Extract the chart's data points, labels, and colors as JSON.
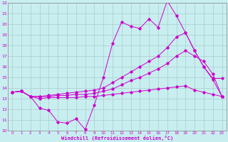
{
  "background_color": "#c8eef0",
  "grid_color": "#aacccc",
  "line_color": "#cc00cc",
  "marker_color": "#cc00cc",
  "xlabel": "Windchill (Refroidissement éolien,°C)",
  "xlabel_color": "#cc00cc",
  "tick_color": "#cc00cc",
  "xlim": [
    -0.5,
    23.5
  ],
  "ylim": [
    10,
    22
  ],
  "xticks": [
    0,
    1,
    2,
    3,
    4,
    5,
    6,
    7,
    8,
    9,
    10,
    11,
    12,
    13,
    14,
    15,
    16,
    17,
    18,
    19,
    20,
    21,
    22,
    23
  ],
  "yticks": [
    10,
    11,
    12,
    13,
    14,
    15,
    16,
    17,
    18,
    19,
    20,
    21,
    22
  ],
  "line1_x": [
    0,
    1,
    2,
    3,
    4,
    5,
    6,
    7,
    8,
    9,
    10,
    11,
    12,
    13,
    14,
    15,
    16,
    17,
    18,
    19,
    20,
    21,
    22,
    23
  ],
  "line1_y": [
    13.6,
    13.7,
    13.2,
    12.1,
    11.9,
    10.8,
    10.7,
    11.1,
    10.1,
    12.4,
    15.0,
    18.2,
    20.2,
    19.8,
    19.6,
    20.5,
    19.7,
    22.2,
    20.8,
    19.2,
    17.5,
    16.0,
    14.9,
    14.9
  ],
  "line2_x": [
    0,
    1,
    2,
    3,
    4,
    5,
    6,
    7,
    8,
    9,
    10,
    11,
    12,
    13,
    14,
    15,
    16,
    17,
    18,
    19,
    20,
    21,
    22,
    23
  ],
  "line2_y": [
    13.6,
    13.7,
    13.2,
    13.2,
    13.3,
    13.4,
    13.5,
    13.6,
    13.7,
    13.8,
    14.0,
    14.5,
    15.0,
    15.5,
    16.0,
    16.5,
    17.0,
    17.8,
    18.8,
    19.2,
    17.5,
    16.0,
    14.8,
    13.2
  ],
  "line3_x": [
    0,
    1,
    2,
    3,
    4,
    5,
    6,
    7,
    8,
    9,
    10,
    11,
    12,
    13,
    14,
    15,
    16,
    17,
    18,
    19,
    20,
    21,
    22,
    23
  ],
  "line3_y": [
    13.6,
    13.7,
    13.2,
    13.2,
    13.2,
    13.3,
    13.3,
    13.4,
    13.4,
    13.5,
    13.7,
    13.9,
    14.3,
    14.7,
    15.0,
    15.4,
    15.8,
    16.3,
    17.0,
    17.5,
    17.0,
    16.5,
    15.3,
    13.2
  ],
  "line4_x": [
    0,
    1,
    2,
    3,
    4,
    5,
    6,
    7,
    8,
    9,
    10,
    11,
    12,
    13,
    14,
    15,
    16,
    17,
    18,
    19,
    20,
    21,
    22,
    23
  ],
  "line4_y": [
    13.6,
    13.7,
    13.2,
    13.0,
    13.1,
    13.1,
    13.1,
    13.1,
    13.2,
    13.2,
    13.3,
    13.4,
    13.5,
    13.6,
    13.7,
    13.8,
    13.9,
    14.0,
    14.1,
    14.2,
    13.8,
    13.6,
    13.4,
    13.2
  ]
}
